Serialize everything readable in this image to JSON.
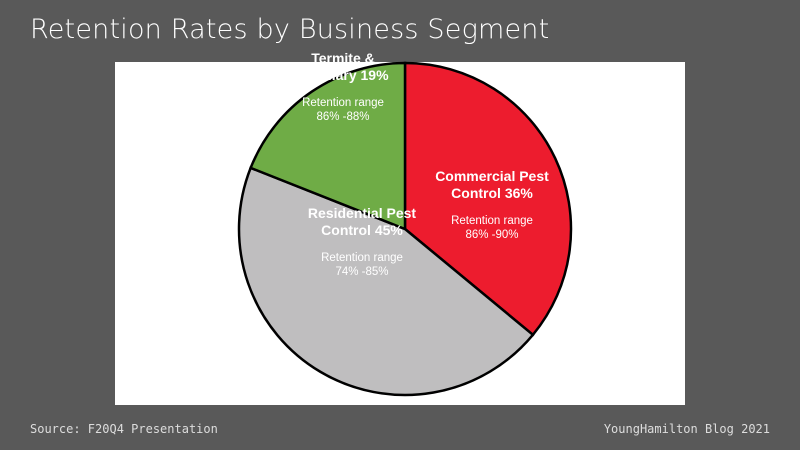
{
  "title": "Retention Rates by Business Segment",
  "source": "Source: F20Q4 Presentation",
  "credit": "YoungHamilton Blog 2021",
  "chart_data": {
    "type": "pie",
    "categories": [
      "Commercial Pest Control",
      "Residential Pest Control",
      "Termite & Ancillary"
    ],
    "values": [
      36,
      45,
      19
    ],
    "value_labels": [
      "36%",
      "45%",
      "19%"
    ],
    "colors": [
      "#ed1c2e",
      "#bfbebf",
      "#6fac46"
    ],
    "retention": [
      {
        "label": "Retention range",
        "range": "86% -90%"
      },
      {
        "label": "Retention range",
        "range": "74% -85%"
      },
      {
        "label": "Retention range",
        "range": "86% -88%"
      }
    ]
  }
}
